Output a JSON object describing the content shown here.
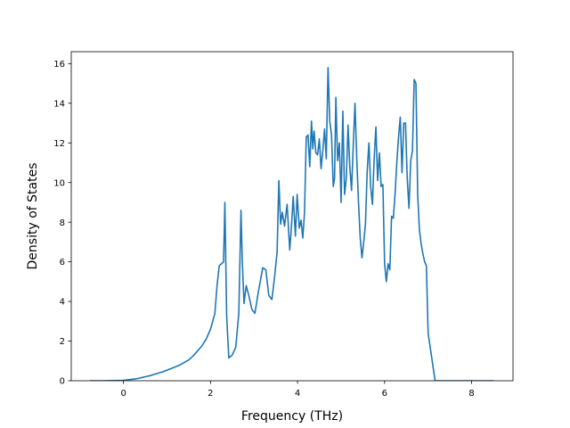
{
  "chart_data": {
    "type": "line",
    "title": "",
    "xlabel": "Frequency (THz)",
    "ylabel": "Density of States",
    "xlim": [
      -1.2,
      8.95
    ],
    "ylim": [
      0,
      16.6
    ],
    "xticks": [
      0,
      2,
      4,
      6,
      8
    ],
    "yticks": [
      0,
      2,
      4,
      6,
      8,
      10,
      12,
      14,
      16
    ],
    "xtick_labels": [
      "0",
      "2",
      "4",
      "6",
      "8"
    ],
    "ytick_labels": [
      "0",
      "2",
      "4",
      "6",
      "8",
      "10",
      "12",
      "14",
      "16"
    ],
    "grid": false,
    "legend": false,
    "line_color": "#1f77b4",
    "series": [
      {
        "x": [
          -0.77,
          -0.5,
          0.0,
          0.3,
          0.6,
          0.9,
          1.1,
          1.3,
          1.5,
          1.6,
          1.7,
          1.8,
          1.9,
          2.0,
          2.05,
          2.1,
          2.15,
          2.2,
          2.25,
          2.3,
          2.33,
          2.37,
          2.42,
          2.5,
          2.58,
          2.65,
          2.7,
          2.73,
          2.77,
          2.82,
          2.88,
          2.95,
          3.02,
          3.1,
          3.2,
          3.27,
          3.34,
          3.41,
          3.47,
          3.53,
          3.57,
          3.61,
          3.65,
          3.7,
          3.76,
          3.82,
          3.86,
          3.9,
          3.95,
          3.99,
          4.04,
          4.08,
          4.12,
          4.16,
          4.2,
          4.24,
          4.28,
          4.32,
          4.35,
          4.38,
          4.42,
          4.46,
          4.5,
          4.54,
          4.58,
          4.62,
          4.66,
          4.7,
          4.74,
          4.78,
          4.82,
          4.85,
          4.88,
          4.92,
          4.96,
          5.0,
          5.04,
          5.08,
          5.12,
          5.16,
          5.2,
          5.24,
          5.28,
          5.32,
          5.36,
          5.4,
          5.44,
          5.48,
          5.52,
          5.56,
          5.6,
          5.64,
          5.68,
          5.72,
          5.76,
          5.8,
          5.84,
          5.88,
          5.92,
          5.96,
          6.0,
          6.04,
          6.08,
          6.12,
          6.16,
          6.2,
          6.24,
          6.28,
          6.32,
          6.36,
          6.4,
          6.44,
          6.48,
          6.52,
          6.56,
          6.6,
          6.64,
          6.68,
          6.72,
          6.76,
          6.8,
          6.84,
          6.88,
          6.92,
          6.96,
          7.0,
          7.04,
          7.08,
          7.12,
          7.16,
          7.2,
          7.24,
          7.28,
          7.32,
          7.36,
          7.4,
          7.44,
          7.48,
          7.52,
          7.56,
          7.6,
          7.64,
          7.68,
          7.75,
          8.0,
          8.5
        ],
        "y": [
          0,
          0,
          0.02,
          0.1,
          0.25,
          0.45,
          0.62,
          0.8,
          1.05,
          1.25,
          1.5,
          1.75,
          2.1,
          2.6,
          3.0,
          3.4,
          4.8,
          5.8,
          5.9,
          6.0,
          9.0,
          3.3,
          1.15,
          1.3,
          1.7,
          3.4,
          8.6,
          6.0,
          3.9,
          4.8,
          4.3,
          3.6,
          3.4,
          4.5,
          5.7,
          5.6,
          4.3,
          4.1,
          5.2,
          6.5,
          10.1,
          7.9,
          8.5,
          7.8,
          8.9,
          6.6,
          7.8,
          9.3,
          7.3,
          9.4,
          7.7,
          8.1,
          7.2,
          8.5,
          12.3,
          12.4,
          10.8,
          13.1,
          11.7,
          12.6,
          11.5,
          11.4,
          12.2,
          10.7,
          11.6,
          12.7,
          11.2,
          15.8,
          13.1,
          12.4,
          9.8,
          10.2,
          14.3,
          11.1,
          12.0,
          9.0,
          13.6,
          9.4,
          10.2,
          12.9,
          10.8,
          9.6,
          11.9,
          14.0,
          11.2,
          9.0,
          7.2,
          6.2,
          7.0,
          7.9,
          10.6,
          12.0,
          9.8,
          8.9,
          11.2,
          12.8,
          10.1,
          11.5,
          9.8,
          9.9,
          5.9,
          5.0,
          5.9,
          5.6,
          8.3,
          8.2,
          9.4,
          11.0,
          12.3,
          13.3,
          10.5,
          13.0,
          13.0,
          10.2,
          8.7,
          11.1,
          11.6,
          15.2,
          15.0,
          9.4,
          7.6,
          6.9,
          6.4,
          6.0,
          5.8,
          2.4,
          1.8,
          1.2,
          0.6,
          0,
          0,
          0,
          0,
          0,
          0,
          0,
          0,
          0,
          0,
          0,
          0,
          0,
          0,
          0,
          0,
          0
        ]
      }
    ]
  }
}
